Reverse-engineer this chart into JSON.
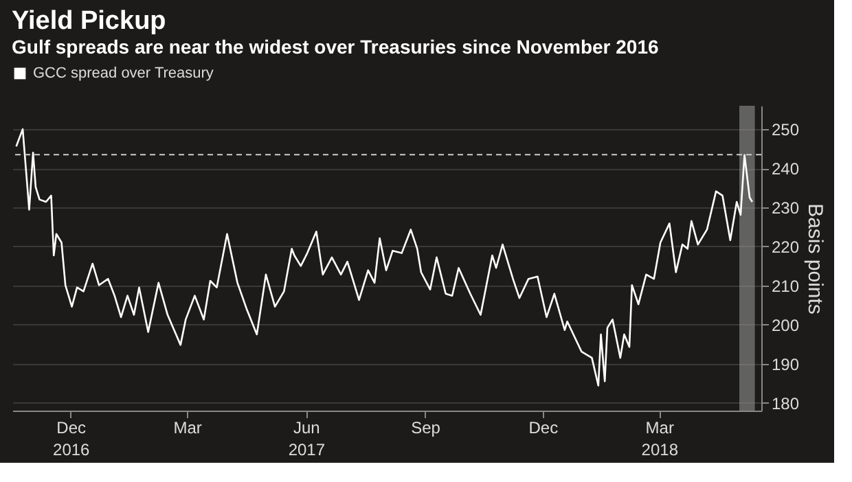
{
  "chart_data": {
    "type": "line",
    "title": "Yield Pickup",
    "subtitle": "Gulf spreads are near the widest over Treasuries since November 2016",
    "ylabel": "Basis points",
    "x": [
      "2016-11-04",
      "2016-11-09",
      "2016-11-14",
      "2016-11-17",
      "2016-11-19",
      "2016-11-22",
      "2016-11-27",
      "2016-12-01",
      "2016-12-03",
      "2016-12-05",
      "2016-12-09",
      "2016-12-12",
      "2016-12-17",
      "2016-12-21",
      "2016-12-26",
      "2017-01-02",
      "2017-01-07",
      "2017-01-14",
      "2017-01-19",
      "2017-01-24",
      "2017-01-29",
      "2017-02-03",
      "2017-02-07",
      "2017-02-14",
      "2017-02-22",
      "2017-03-01",
      "2017-03-11",
      "2017-03-15",
      "2017-03-22",
      "2017-03-29",
      "2017-04-03",
      "2017-04-08",
      "2017-04-16",
      "2017-04-24",
      "2017-05-01",
      "2017-05-09",
      "2017-05-16",
      "2017-05-23",
      "2017-05-30",
      "2017-06-05",
      "2017-06-07",
      "2017-06-12",
      "2017-06-17",
      "2017-06-24",
      "2017-06-29",
      "2017-07-06",
      "2017-07-13",
      "2017-07-18",
      "2017-07-27",
      "2017-08-03",
      "2017-08-08",
      "2017-08-12",
      "2017-08-17",
      "2017-08-22",
      "2017-08-29",
      "2017-09-05",
      "2017-09-10",
      "2017-09-13",
      "2017-09-20",
      "2017-09-25",
      "2017-10-02",
      "2017-10-07",
      "2017-10-12",
      "2017-10-21",
      "2017-10-29",
      "2017-11-07",
      "2017-11-10",
      "2017-11-15",
      "2017-11-23",
      "2017-11-28",
      "2017-12-05",
      "2017-12-12",
      "2017-12-19",
      "2017-12-25",
      "2018-01-02",
      "2018-01-04",
      "2018-01-15",
      "2018-01-23",
      "2018-01-28",
      "2018-01-30",
      "2018-02-02",
      "2018-02-04",
      "2018-02-08",
      "2018-02-14",
      "2018-02-17",
      "2018-02-21",
      "2018-02-23",
      "2018-02-28",
      "2018-03-06",
      "2018-03-12",
      "2018-03-17",
      "2018-03-24",
      "2018-03-29",
      "2018-04-03",
      "2018-04-07",
      "2018-04-10",
      "2018-04-15",
      "2018-04-22",
      "2018-04-29",
      "2018-05-04",
      "2018-05-10",
      "2018-05-15",
      "2018-05-18",
      "2018-05-21",
      "2018-05-25",
      "2018-05-27"
    ],
    "series": [
      {
        "name": "GCC spread over Treasury",
        "color": "#ffffff",
        "values": [
          245.6,
          250,
          229.4,
          244,
          235.2,
          232,
          231.4,
          233,
          217.7,
          223.2,
          221,
          210.1,
          204.6,
          209.5,
          208.5,
          215.6,
          210.1,
          211.7,
          207.4,
          201.9,
          207.4,
          202.5,
          209.5,
          198.1,
          210.7,
          202.5,
          194.8,
          201.3,
          207.4,
          201.3,
          211.2,
          209.5,
          223.2,
          210.7,
          204.1,
          197.5,
          212.8,
          204.6,
          208.5,
          219.4,
          217.7,
          215,
          218.3,
          223.8,
          212.8,
          217.2,
          212.8,
          216.1,
          206.3,
          213.9,
          210.7,
          222.1,
          213.9,
          218.9,
          218.3,
          224.3,
          219.4,
          213.4,
          209,
          217.2,
          207.9,
          207.4,
          214.5,
          207.9,
          202.5,
          217.7,
          214.5,
          220.5,
          211.7,
          206.8,
          211.7,
          212.3,
          201.9,
          207.9,
          198.6,
          200.8,
          193.1,
          191.5,
          184.4,
          197.5,
          185.5,
          199.2,
          201.3,
          191.5,
          197.5,
          194.3,
          210.1,
          205.2,
          212.8,
          211.7,
          221,
          225.9,
          213.4,
          220.5,
          219.4,
          226.5,
          220.5,
          224.3,
          234.1,
          233,
          221.6,
          231.4,
          228.1,
          243.4,
          232.5,
          231.4
        ]
      }
    ],
    "xlim": [
      "2016-11-01",
      "2018-06-03"
    ],
    "xticks": [
      {
        "value": "2016-12-16",
        "label": "Dec 2016"
      },
      {
        "value": "2017-03-16",
        "label": "Mar"
      },
      {
        "value": "2017-06-16",
        "label": "Jun 2017"
      },
      {
        "value": "2017-09-16",
        "label": "Sep"
      },
      {
        "value": "2017-12-16",
        "label": "Dec"
      },
      {
        "value": "2018-03-16",
        "label": "Mar 2018"
      }
    ],
    "ylim": [
      178,
      256
    ],
    "yticks": [
      180,
      190,
      200,
      210,
      220,
      230,
      240,
      250
    ],
    "ref_lines": [
      {
        "axis": "y",
        "value": 243.5,
        "color": "#cccccc",
        "line_style": "dashed"
      }
    ],
    "bands": [
      {
        "axis": "x",
        "from": "2018-05-17",
        "to": "2018-05-29",
        "color": "#9a9a9a"
      }
    ],
    "grid": "y",
    "legend": "top",
    "line_style": "solid"
  }
}
